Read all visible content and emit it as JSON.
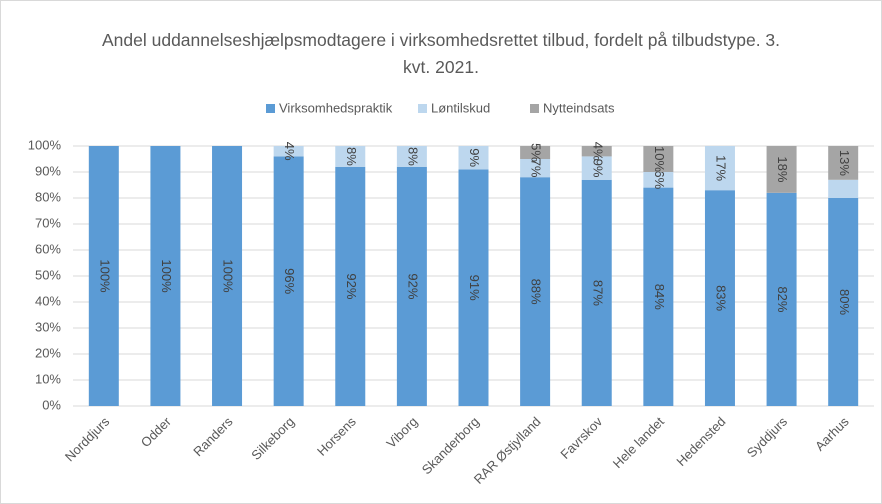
{
  "chart_data": {
    "type": "stacked_bar",
    "title": "Andel uddannelseshjælpsmodtagere i virksomhedsrettet tilbud, fordelt på tilbudstype. 3. kvt. 2021.",
    "categories": [
      "Norddjurs",
      "Odder",
      "Randers",
      "Silkeborg",
      "Horsens",
      "Viborg",
      "Skanderborg",
      "RAR Østjylland",
      "Favrskov",
      "Hele landet",
      "Hedensted",
      "Syddjurs",
      "Aarhus"
    ],
    "series": [
      {
        "name": "Virksomhedspraktik",
        "color": "#5b9bd5",
        "values": [
          100,
          100,
          100,
          96,
          92,
          92,
          91,
          88,
          87,
          84,
          83,
          82,
          80
        ],
        "value_labels": [
          "100%",
          "100%",
          "100%",
          "96%",
          "92%",
          "92%",
          "91%",
          "88%",
          "87%",
          "84%",
          "83%",
          "82%",
          "80%"
        ]
      },
      {
        "name": "Løntilskud",
        "color": "#bdd7ee",
        "values": [
          0,
          0,
          0,
          4,
          8,
          8,
          9,
          7,
          9,
          6,
          17,
          0,
          7
        ],
        "value_labels": [
          null,
          null,
          null,
          "4%",
          "8%",
          "8%",
          "9%",
          "7%",
          "9%",
          "6%",
          "17%",
          null,
          null
        ]
      },
      {
        "name": "Nytteindsats",
        "color": "#a5a5a5",
        "values": [
          0,
          0,
          0,
          0,
          0,
          0,
          0,
          5,
          4,
          10,
          0,
          18,
          13
        ],
        "value_labels": [
          null,
          null,
          null,
          null,
          null,
          null,
          null,
          "5%",
          "4%",
          "10%",
          null,
          "18%",
          "13%"
        ]
      }
    ],
    "ylim": [
      0,
      100
    ],
    "yticks": [
      {
        "value": 0,
        "label": "0%"
      },
      {
        "value": 10,
        "label": "10%"
      },
      {
        "value": 20,
        "label": "20%"
      },
      {
        "value": 30,
        "label": "30%"
      },
      {
        "value": 40,
        "label": "40%"
      },
      {
        "value": 50,
        "label": "50%"
      },
      {
        "value": 60,
        "label": "60%"
      },
      {
        "value": 70,
        "label": "70%"
      },
      {
        "value": 80,
        "label": "80%"
      },
      {
        "value": 90,
        "label": "90%"
      },
      {
        "value": 100,
        "label": "100%"
      }
    ],
    "grid": true,
    "legend": "top"
  }
}
